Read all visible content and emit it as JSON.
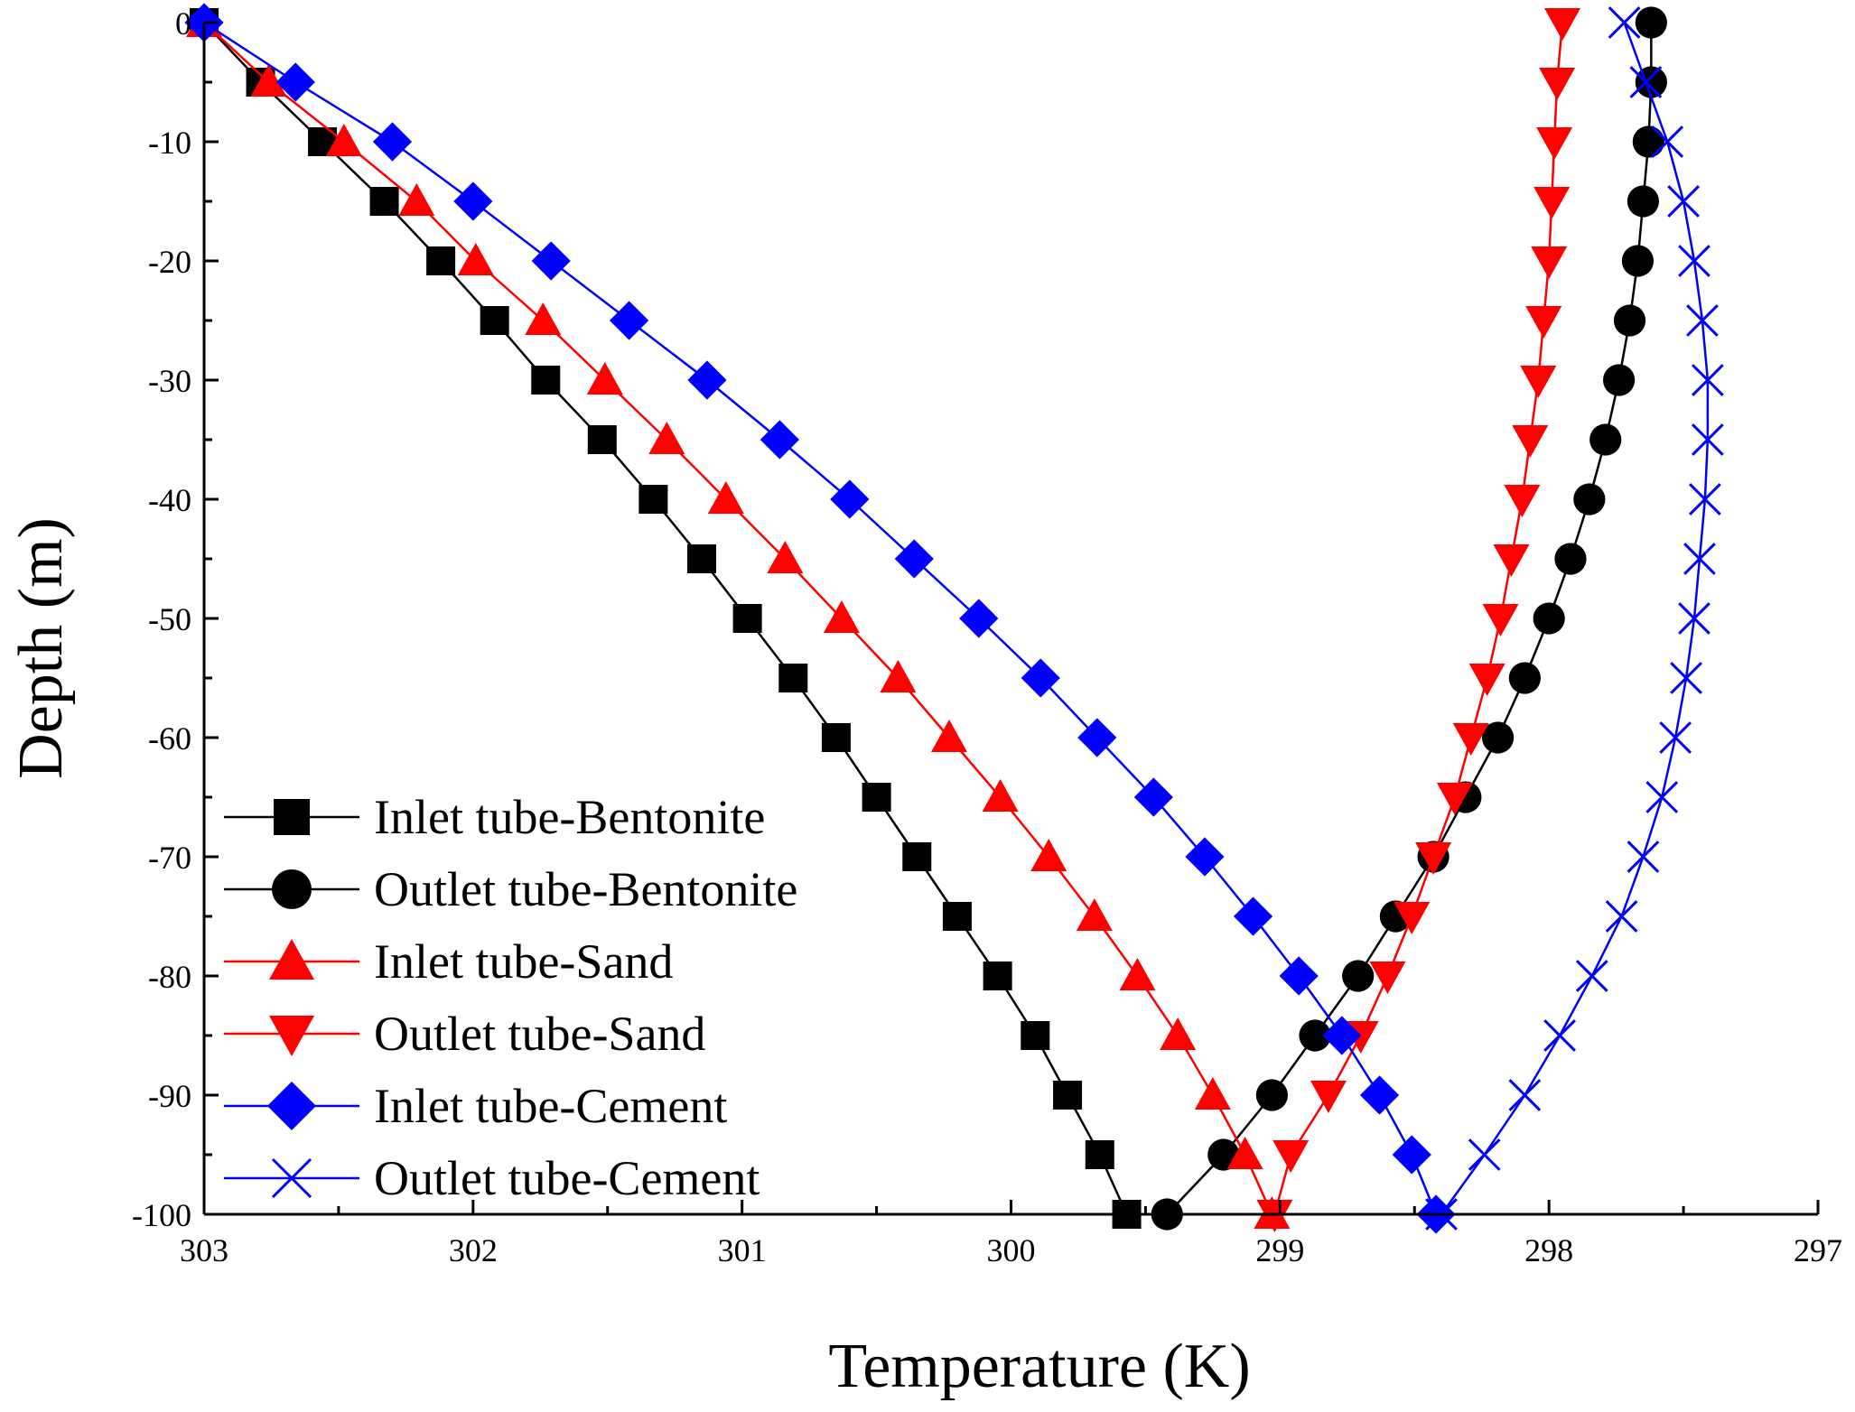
{
  "chart_data": {
    "type": "line",
    "title": "",
    "xlabel": "Temperature (K)",
    "ylabel": "Depth (m)",
    "xlim": [
      303,
      297
    ],
    "ylim": [
      -100,
      0
    ],
    "x_reversed": true,
    "xticks": [
      303,
      302,
      301,
      300,
      299,
      298,
      297
    ],
    "xtick_labels": [
      "303",
      "302",
      "301",
      "300",
      "299",
      "298",
      "297"
    ],
    "yticks": [
      0,
      -10,
      -20,
      -30,
      -40,
      -50,
      -60,
      -70,
      -80,
      -90,
      -100
    ],
    "ytick_labels": [
      "0",
      "-10",
      "-20",
      "-30",
      "-40",
      "-50",
      "-60",
      "-70",
      "-80",
      "-90",
      "-100"
    ],
    "grid": false,
    "legend_position": "bottom-left",
    "depth": [
      0,
      -5,
      -10,
      -15,
      -20,
      -25,
      -30,
      -35,
      -40,
      -45,
      -50,
      -55,
      -60,
      -65,
      -70,
      -75,
      -80,
      -85,
      -90,
      -95,
      -100
    ],
    "series": [
      {
        "name": "Inlet tube-Bentonite",
        "color": "#000000",
        "marker": "square",
        "temperature": [
          303.0,
          302.79,
          302.56,
          302.33,
          302.12,
          301.92,
          301.73,
          301.52,
          301.33,
          301.15,
          300.98,
          300.81,
          300.65,
          300.5,
          300.35,
          300.2,
          300.05,
          299.91,
          299.79,
          299.67,
          299.57
        ]
      },
      {
        "name": "Outlet tube-Bentonite",
        "color": "#000000",
        "marker": "circle",
        "temperature": [
          297.62,
          297.62,
          297.63,
          297.65,
          297.67,
          297.7,
          297.74,
          297.79,
          297.85,
          297.92,
          298.0,
          298.09,
          298.19,
          298.31,
          298.43,
          298.57,
          298.71,
          298.87,
          299.03,
          299.21,
          299.42
        ]
      },
      {
        "name": "Inlet tube-Sand",
        "color": "#ff0000",
        "marker": "triangle-up",
        "temperature": [
          303.0,
          302.76,
          302.48,
          302.21,
          301.99,
          301.74,
          301.51,
          301.28,
          301.06,
          300.84,
          300.63,
          300.42,
          300.23,
          300.04,
          299.86,
          299.69,
          299.53,
          299.38,
          299.25,
          299.13,
          299.03
        ]
      },
      {
        "name": "Outlet tube-Sand",
        "color": "#ff0000",
        "marker": "triangle-down",
        "temperature": [
          297.95,
          297.97,
          297.98,
          297.99,
          298.0,
          298.02,
          298.04,
          298.07,
          298.1,
          298.14,
          298.18,
          298.23,
          298.29,
          298.35,
          298.43,
          298.51,
          298.6,
          298.7,
          298.82,
          298.96,
          299.02
        ]
      },
      {
        "name": "Inlet tube-Cement",
        "color": "#0000ff",
        "marker": "diamond",
        "temperature": [
          303.0,
          302.66,
          302.3,
          302.0,
          301.71,
          301.42,
          301.13,
          300.86,
          300.6,
          300.36,
          300.12,
          299.89,
          299.68,
          299.47,
          299.28,
          299.1,
          298.93,
          298.77,
          298.63,
          298.51,
          298.42
        ]
      },
      {
        "name": "Outlet tube-Cement",
        "color": "#0000ff",
        "marker": "x",
        "temperature": [
          297.72,
          297.64,
          297.56,
          297.5,
          297.46,
          297.43,
          297.41,
          297.41,
          297.42,
          297.44,
          297.46,
          297.49,
          297.53,
          297.58,
          297.65,
          297.73,
          297.84,
          297.96,
          298.09,
          298.24,
          298.4
        ]
      }
    ]
  }
}
